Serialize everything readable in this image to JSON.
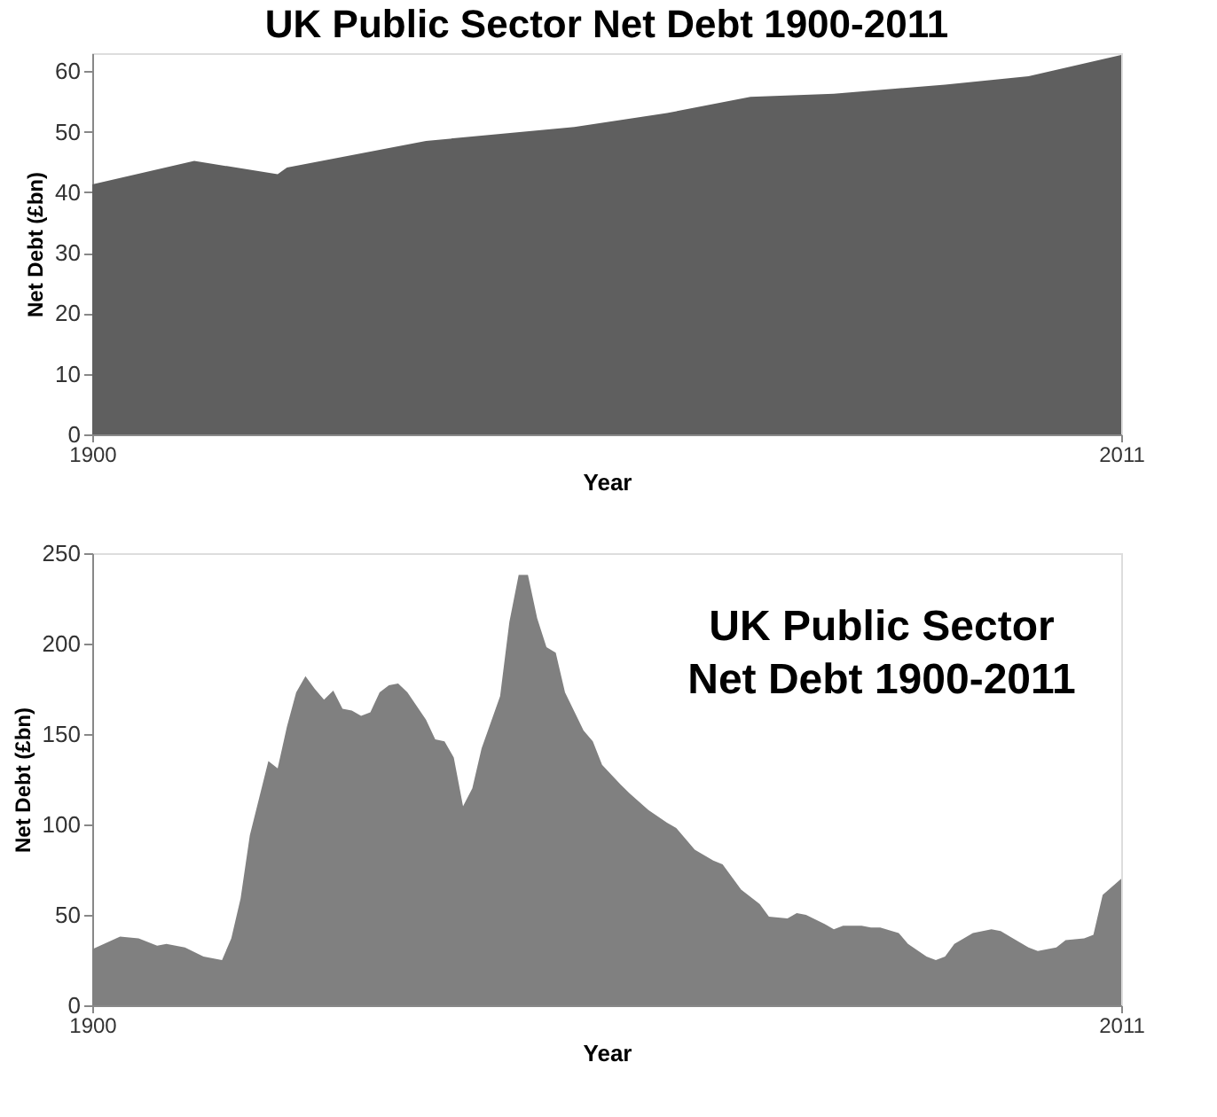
{
  "chart_data": [
    {
      "type": "area",
      "title": "UK Public Sector Net Debt 1900-2011",
      "xlabel": "Year",
      "ylabel": "Net Debt (£bn)",
      "x": [
        1900,
        1911,
        1920,
        1921,
        1936,
        1952,
        1962,
        1971,
        1980,
        1992,
        2001,
        2011
      ],
      "series": [
        {
          "color": "#5f5f5f",
          "values": [
            41.3,
            45.2,
            43.0,
            44.1,
            48.5,
            50.8,
            53.1,
            55.8,
            56.3,
            57.8,
            59.2,
            62.7
          ]
        }
      ],
      "xlim": [
        1900,
        2011
      ],
      "xticks": [
        1900,
        2011
      ],
      "ylim": [
        0,
        63
      ],
      "yticks": [
        0,
        10,
        20,
        30,
        40,
        50,
        60
      ],
      "grid": false
    },
    {
      "type": "area",
      "title": "UK Public Sector\nNet Debt 1900-2011",
      "xlabel": "Year",
      "ylabel": "Net Debt (£bn)",
      "x": [
        1900,
        1903,
        1905,
        1907,
        1908,
        1910,
        1912,
        1914,
        1915,
        1916,
        1917,
        1919,
        1920,
        1921,
        1922,
        1923,
        1924,
        1925,
        1926,
        1927,
        1928,
        1929,
        1930,
        1931,
        1932,
        1933,
        1934,
        1936,
        1937,
        1938,
        1939,
        1940,
        1941,
        1942,
        1944,
        1945,
        1946,
        1947,
        1948,
        1949,
        1950,
        1951,
        1953,
        1954,
        1955,
        1957,
        1958,
        1960,
        1962,
        1963,
        1965,
        1967,
        1968,
        1970,
        1972,
        1973,
        1975,
        1976,
        1977,
        1979,
        1980,
        1981,
        1983,
        1984,
        1985,
        1987,
        1988,
        1990,
        1991,
        1992,
        1993,
        1995,
        1997,
        1998,
        1999,
        2001,
        2002,
        2004,
        2005,
        2007,
        2008,
        2009,
        2011
      ],
      "series": [
        {
          "color": "#808080",
          "values": [
            31,
            38,
            37,
            33,
            34,
            32,
            27,
            25,
            37,
            59,
            94,
            135,
            131,
            154,
            173,
            182,
            175,
            169,
            174,
            164,
            163,
            160,
            162,
            173,
            177,
            178,
            173,
            158,
            147,
            146,
            137,
            110,
            120,
            142,
            171,
            212,
            238,
            238,
            214,
            198,
            195,
            173,
            152,
            146,
            133,
            122,
            117,
            108,
            101,
            98,
            86,
            80,
            78,
            64,
            56,
            49,
            48,
            51,
            50,
            45,
            42,
            44,
            44,
            43,
            43,
            40,
            34,
            27,
            25,
            27,
            34,
            40,
            42,
            41,
            38,
            32,
            30,
            32,
            36,
            37,
            39,
            61,
            70
          ]
        }
      ],
      "xlim": [
        1900,
        2011
      ],
      "xticks": [
        1900,
        2011
      ],
      "ylim": [
        0,
        250
      ],
      "yticks": [
        0,
        50,
        100,
        150,
        200,
        250
      ],
      "grid": false
    }
  ]
}
